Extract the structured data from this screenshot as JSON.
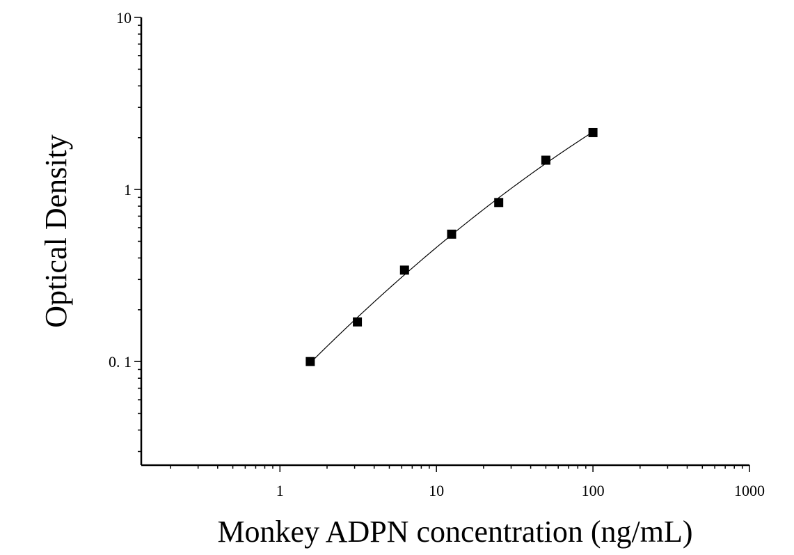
{
  "chart_data": {
    "type": "scatter",
    "title": "",
    "xlabel": "Monkey ADPN concentration (ng/mL)",
    "ylabel": "Optical Density",
    "xscale": "log",
    "yscale": "log",
    "xlim": [
      0.13,
      1000
    ],
    "ylim": [
      0.025,
      10
    ],
    "grid": false,
    "legend": "none",
    "x_ticks": [
      {
        "value": 1,
        "label": "1"
      },
      {
        "value": 10,
        "label": "10"
      },
      {
        "value": 100,
        "label": "100"
      },
      {
        "value": 1000,
        "label": "1000"
      }
    ],
    "y_ticks": [
      {
        "value": 0.1,
        "label": "0. 1"
      },
      {
        "value": 1,
        "label": "1"
      },
      {
        "value": 10,
        "label": "10"
      }
    ],
    "series": [
      {
        "x": [
          1.5625,
          3.125,
          6.25,
          12.5,
          25,
          50,
          100
        ],
        "y": [
          0.1,
          0.17,
          0.34,
          0.55,
          0.84,
          1.48,
          2.14
        ],
        "marker": "square",
        "fit_curve": true,
        "color": "#000000"
      }
    ]
  }
}
